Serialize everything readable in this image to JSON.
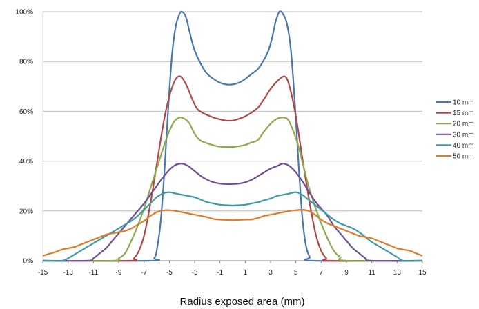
{
  "chart_data": {
    "type": "line",
    "title": "",
    "xlabel": "Radius exposed area (mm)",
    "ylabel": "",
    "xlim": [
      -15,
      15
    ],
    "ylim": [
      0,
      100
    ],
    "x_ticks": [
      -15,
      -13,
      -11,
      -9,
      -7,
      -5,
      -3,
      -1,
      1,
      3,
      5,
      7,
      9,
      11,
      13,
      15
    ],
    "y_ticks": [
      0,
      20,
      40,
      60,
      80,
      100
    ],
    "y_tick_labels": [
      "0%",
      "20%",
      "40%",
      "60%",
      "80%",
      "100%"
    ],
    "grid": "horizontal",
    "legend_position": "right",
    "series": [
      {
        "name": "10 mm",
        "color": "#4a76ad",
        "points": [
          [
            -15,
            0
          ],
          [
            -6.5,
            0
          ],
          [
            -6.2,
            1
          ],
          [
            -6.0,
            4
          ],
          [
            -5.7,
            15
          ],
          [
            -5.4,
            35
          ],
          [
            -5.1,
            60
          ],
          [
            -4.8,
            82
          ],
          [
            -4.5,
            94
          ],
          [
            -4.2,
            99
          ],
          [
            -4.0,
            100
          ],
          [
            -3.7,
            98
          ],
          [
            -3.4,
            92
          ],
          [
            -3.1,
            86
          ],
          [
            -2.8,
            82
          ],
          [
            -2.4,
            78
          ],
          [
            -2.0,
            75
          ],
          [
            -1.5,
            73
          ],
          [
            -1.0,
            71.5
          ],
          [
            -0.5,
            70.8
          ],
          [
            0,
            70.8
          ],
          [
            0.5,
            71.5
          ],
          [
            1.0,
            73
          ],
          [
            1.5,
            75
          ],
          [
            2.0,
            77
          ],
          [
            2.4,
            80
          ],
          [
            2.8,
            84
          ],
          [
            3.1,
            89
          ],
          [
            3.4,
            96
          ],
          [
            3.7,
            100
          ],
          [
            4.0,
            99
          ],
          [
            4.3,
            95
          ],
          [
            4.6,
            85
          ],
          [
            4.9,
            65
          ],
          [
            5.2,
            40
          ],
          [
            5.5,
            18
          ],
          [
            5.8,
            6
          ],
          [
            6.1,
            1.5
          ],
          [
            6.4,
            0
          ],
          [
            15,
            0
          ]
        ]
      },
      {
        "name": "15 mm",
        "color": "#b24745",
        "points": [
          [
            -15,
            0
          ],
          [
            -8.2,
            0
          ],
          [
            -7.8,
            1
          ],
          [
            -7.4,
            4
          ],
          [
            -7.0,
            10
          ],
          [
            -6.6,
            20
          ],
          [
            -6.2,
            32
          ],
          [
            -5.8,
            45
          ],
          [
            -5.4,
            57
          ],
          [
            -5.0,
            66
          ],
          [
            -4.6,
            72
          ],
          [
            -4.3,
            74
          ],
          [
            -4.0,
            73.5
          ],
          [
            -3.6,
            70
          ],
          [
            -3.2,
            65
          ],
          [
            -2.8,
            61
          ],
          [
            -2.4,
            59.5
          ],
          [
            -2.0,
            58.5
          ],
          [
            -1.5,
            57.5
          ],
          [
            -1.0,
            56.8
          ],
          [
            -0.5,
            56.3
          ],
          [
            0,
            56.3
          ],
          [
            0.5,
            57
          ],
          [
            1.0,
            58
          ],
          [
            1.5,
            59.5
          ],
          [
            2.0,
            61.5
          ],
          [
            2.5,
            65
          ],
          [
            3.0,
            69
          ],
          [
            3.5,
            72
          ],
          [
            4.0,
            74
          ],
          [
            4.3,
            73
          ],
          [
            4.6,
            68
          ],
          [
            5.0,
            58
          ],
          [
            5.4,
            45
          ],
          [
            5.8,
            32
          ],
          [
            6.2,
            20
          ],
          [
            6.6,
            10
          ],
          [
            7.0,
            4
          ],
          [
            7.4,
            1
          ],
          [
            7.8,
            0
          ],
          [
            15,
            0
          ]
        ]
      },
      {
        "name": "20 mm",
        "color": "#8aaa4b",
        "points": [
          [
            -15,
            0
          ],
          [
            -9.5,
            0
          ],
          [
            -9.0,
            1
          ],
          [
            -8.5,
            3
          ],
          [
            -8.0,
            8
          ],
          [
            -7.5,
            14
          ],
          [
            -7.0,
            21
          ],
          [
            -6.5,
            29
          ],
          [
            -6.0,
            37
          ],
          [
            -5.5,
            45
          ],
          [
            -5.0,
            52
          ],
          [
            -4.6,
            56
          ],
          [
            -4.2,
            57.5
          ],
          [
            -3.8,
            57
          ],
          [
            -3.4,
            55
          ],
          [
            -3.0,
            51
          ],
          [
            -2.6,
            48.5
          ],
          [
            -2.2,
            47.5
          ],
          [
            -1.8,
            46.8
          ],
          [
            -1.4,
            46.2
          ],
          [
            -1.0,
            45.8
          ],
          [
            -0.5,
            45.7
          ],
          [
            0,
            45.7
          ],
          [
            0.5,
            46
          ],
          [
            1.0,
            46.5
          ],
          [
            1.5,
            47.5
          ],
          [
            2.0,
            48.5
          ],
          [
            2.5,
            52
          ],
          [
            3.0,
            55
          ],
          [
            3.5,
            57
          ],
          [
            4.0,
            57.5
          ],
          [
            4.4,
            56.5
          ],
          [
            4.8,
            52
          ],
          [
            5.2,
            46
          ],
          [
            5.6,
            38
          ],
          [
            6.0,
            30
          ],
          [
            6.5,
            22
          ],
          [
            7.0,
            15
          ],
          [
            7.5,
            9
          ],
          [
            8.0,
            4
          ],
          [
            8.5,
            1.5
          ],
          [
            9.0,
            0
          ],
          [
            15,
            0
          ]
        ]
      },
      {
        "name": "30 mm",
        "color": "#6e4c96",
        "points": [
          [
            -15,
            0
          ],
          [
            -11.5,
            0
          ],
          [
            -11.0,
            1
          ],
          [
            -10.5,
            3
          ],
          [
            -10.0,
            5
          ],
          [
            -9.5,
            8
          ],
          [
            -9.0,
            11
          ],
          [
            -8.5,
            14
          ],
          [
            -8.0,
            17
          ],
          [
            -7.5,
            20
          ],
          [
            -7.0,
            23
          ],
          [
            -6.5,
            26.5
          ],
          [
            -6.0,
            30
          ],
          [
            -5.5,
            33.5
          ],
          [
            -5.0,
            36.5
          ],
          [
            -4.5,
            38.5
          ],
          [
            -4.0,
            39
          ],
          [
            -3.5,
            38
          ],
          [
            -3.0,
            36
          ],
          [
            -2.5,
            34
          ],
          [
            -2.0,
            32.5
          ],
          [
            -1.5,
            31.5
          ],
          [
            -1.0,
            31
          ],
          [
            -0.5,
            30.8
          ],
          [
            0,
            30.8
          ],
          [
            0.5,
            31
          ],
          [
            1.0,
            31.5
          ],
          [
            1.5,
            32.5
          ],
          [
            2.0,
            34
          ],
          [
            2.5,
            35.5
          ],
          [
            3.0,
            37
          ],
          [
            3.5,
            38
          ],
          [
            4.0,
            39
          ],
          [
            4.5,
            38
          ],
          [
            5.0,
            35.5
          ],
          [
            5.5,
            32
          ],
          [
            6.0,
            28
          ],
          [
            6.5,
            24
          ],
          [
            7.0,
            21
          ],
          [
            7.5,
            18
          ],
          [
            8.0,
            14
          ],
          [
            8.5,
            11
          ],
          [
            9.0,
            8
          ],
          [
            9.5,
            5
          ],
          [
            10.0,
            3
          ],
          [
            10.5,
            1
          ],
          [
            11.0,
            0
          ],
          [
            15,
            0
          ]
        ]
      },
      {
        "name": "40 mm",
        "color": "#3d9ba8",
        "points": [
          [
            -15,
            0
          ],
          [
            -13.5,
            0
          ],
          [
            -13.0,
            1
          ],
          [
            -12.5,
            2.5
          ],
          [
            -12.0,
            4
          ],
          [
            -11.5,
            5.5
          ],
          [
            -11.0,
            7
          ],
          [
            -10.5,
            8.5
          ],
          [
            -10.0,
            10
          ],
          [
            -9.5,
            11.5
          ],
          [
            -9.0,
            13
          ],
          [
            -8.5,
            14.5
          ],
          [
            -8.0,
            16
          ],
          [
            -7.5,
            18
          ],
          [
            -7.0,
            20.5
          ],
          [
            -6.5,
            23
          ],
          [
            -6.0,
            25.5
          ],
          [
            -5.5,
            27
          ],
          [
            -5.0,
            27.5
          ],
          [
            -4.5,
            27
          ],
          [
            -4.0,
            26.5
          ],
          [
            -3.5,
            26
          ],
          [
            -3.0,
            25.5
          ],
          [
            -2.5,
            24.5
          ],
          [
            -2.0,
            23.5
          ],
          [
            -1.5,
            23
          ],
          [
            -1.0,
            22.5
          ],
          [
            -0.5,
            22.3
          ],
          [
            0,
            22.2
          ],
          [
            0.5,
            22.3
          ],
          [
            1.0,
            22.5
          ],
          [
            1.5,
            23
          ],
          [
            2.0,
            23.5
          ],
          [
            2.5,
            24.3
          ],
          [
            3.0,
            25
          ],
          [
            3.5,
            26
          ],
          [
            4.0,
            26.5
          ],
          [
            4.5,
            27
          ],
          [
            5.0,
            27.5
          ],
          [
            5.5,
            26.5
          ],
          [
            6.0,
            24.5
          ],
          [
            6.5,
            22.5
          ],
          [
            7.0,
            20.5
          ],
          [
            7.5,
            18.5
          ],
          [
            8.0,
            16.5
          ],
          [
            8.5,
            15
          ],
          [
            9.0,
            14
          ],
          [
            9.5,
            13
          ],
          [
            10.0,
            11.5
          ],
          [
            10.5,
            9.5
          ],
          [
            11.0,
            7.5
          ],
          [
            11.5,
            6
          ],
          [
            12.0,
            4.5
          ],
          [
            12.5,
            3
          ],
          [
            13.0,
            1.5
          ],
          [
            13.5,
            0
          ],
          [
            15,
            0
          ]
        ]
      },
      {
        "name": "50 mm",
        "color": "#e07b2a",
        "points": [
          [
            -15,
            2
          ],
          [
            -14.5,
            2.8
          ],
          [
            -14.0,
            3.5
          ],
          [
            -13.5,
            4.5
          ],
          [
            -13.0,
            5
          ],
          [
            -12.5,
            5.5
          ],
          [
            -12.0,
            6.5
          ],
          [
            -11.5,
            7.5
          ],
          [
            -11.0,
            8.5
          ],
          [
            -10.5,
            9.5
          ],
          [
            -10.0,
            10.5
          ],
          [
            -9.5,
            11
          ],
          [
            -9.0,
            11.5
          ],
          [
            -8.5,
            12
          ],
          [
            -8.0,
            13
          ],
          [
            -7.5,
            14.5
          ],
          [
            -7.0,
            16
          ],
          [
            -6.5,
            18
          ],
          [
            -6.0,
            19.5
          ],
          [
            -5.5,
            20.2
          ],
          [
            -5.0,
            20.3
          ],
          [
            -4.5,
            20
          ],
          [
            -4.0,
            19.5
          ],
          [
            -3.5,
            19
          ],
          [
            -3.0,
            18.5
          ],
          [
            -2.5,
            18
          ],
          [
            -2.0,
            17.5
          ],
          [
            -1.5,
            16.8
          ],
          [
            -1.0,
            16.5
          ],
          [
            -0.5,
            16.4
          ],
          [
            0,
            16.3
          ],
          [
            0.5,
            16.4
          ],
          [
            1.0,
            16.5
          ],
          [
            1.5,
            16.6
          ],
          [
            2.0,
            17.2
          ],
          [
            2.5,
            18
          ],
          [
            3.0,
            18.5
          ],
          [
            3.5,
            19
          ],
          [
            4.0,
            19.5
          ],
          [
            4.5,
            20
          ],
          [
            5.0,
            20.3
          ],
          [
            5.5,
            20.5
          ],
          [
            6.0,
            20
          ],
          [
            6.5,
            18.5
          ],
          [
            7.0,
            16.5
          ],
          [
            7.5,
            15
          ],
          [
            8.0,
            14
          ],
          [
            8.5,
            13
          ],
          [
            9.0,
            12
          ],
          [
            9.5,
            11
          ],
          [
            10.0,
            10
          ],
          [
            10.5,
            9.5
          ],
          [
            11.0,
            9
          ],
          [
            11.5,
            8
          ],
          [
            12.0,
            7
          ],
          [
            12.5,
            6
          ],
          [
            13.0,
            5
          ],
          [
            13.5,
            4.5
          ],
          [
            14.0,
            4
          ],
          [
            14.5,
            3
          ],
          [
            15.0,
            2
          ]
        ]
      }
    ]
  }
}
